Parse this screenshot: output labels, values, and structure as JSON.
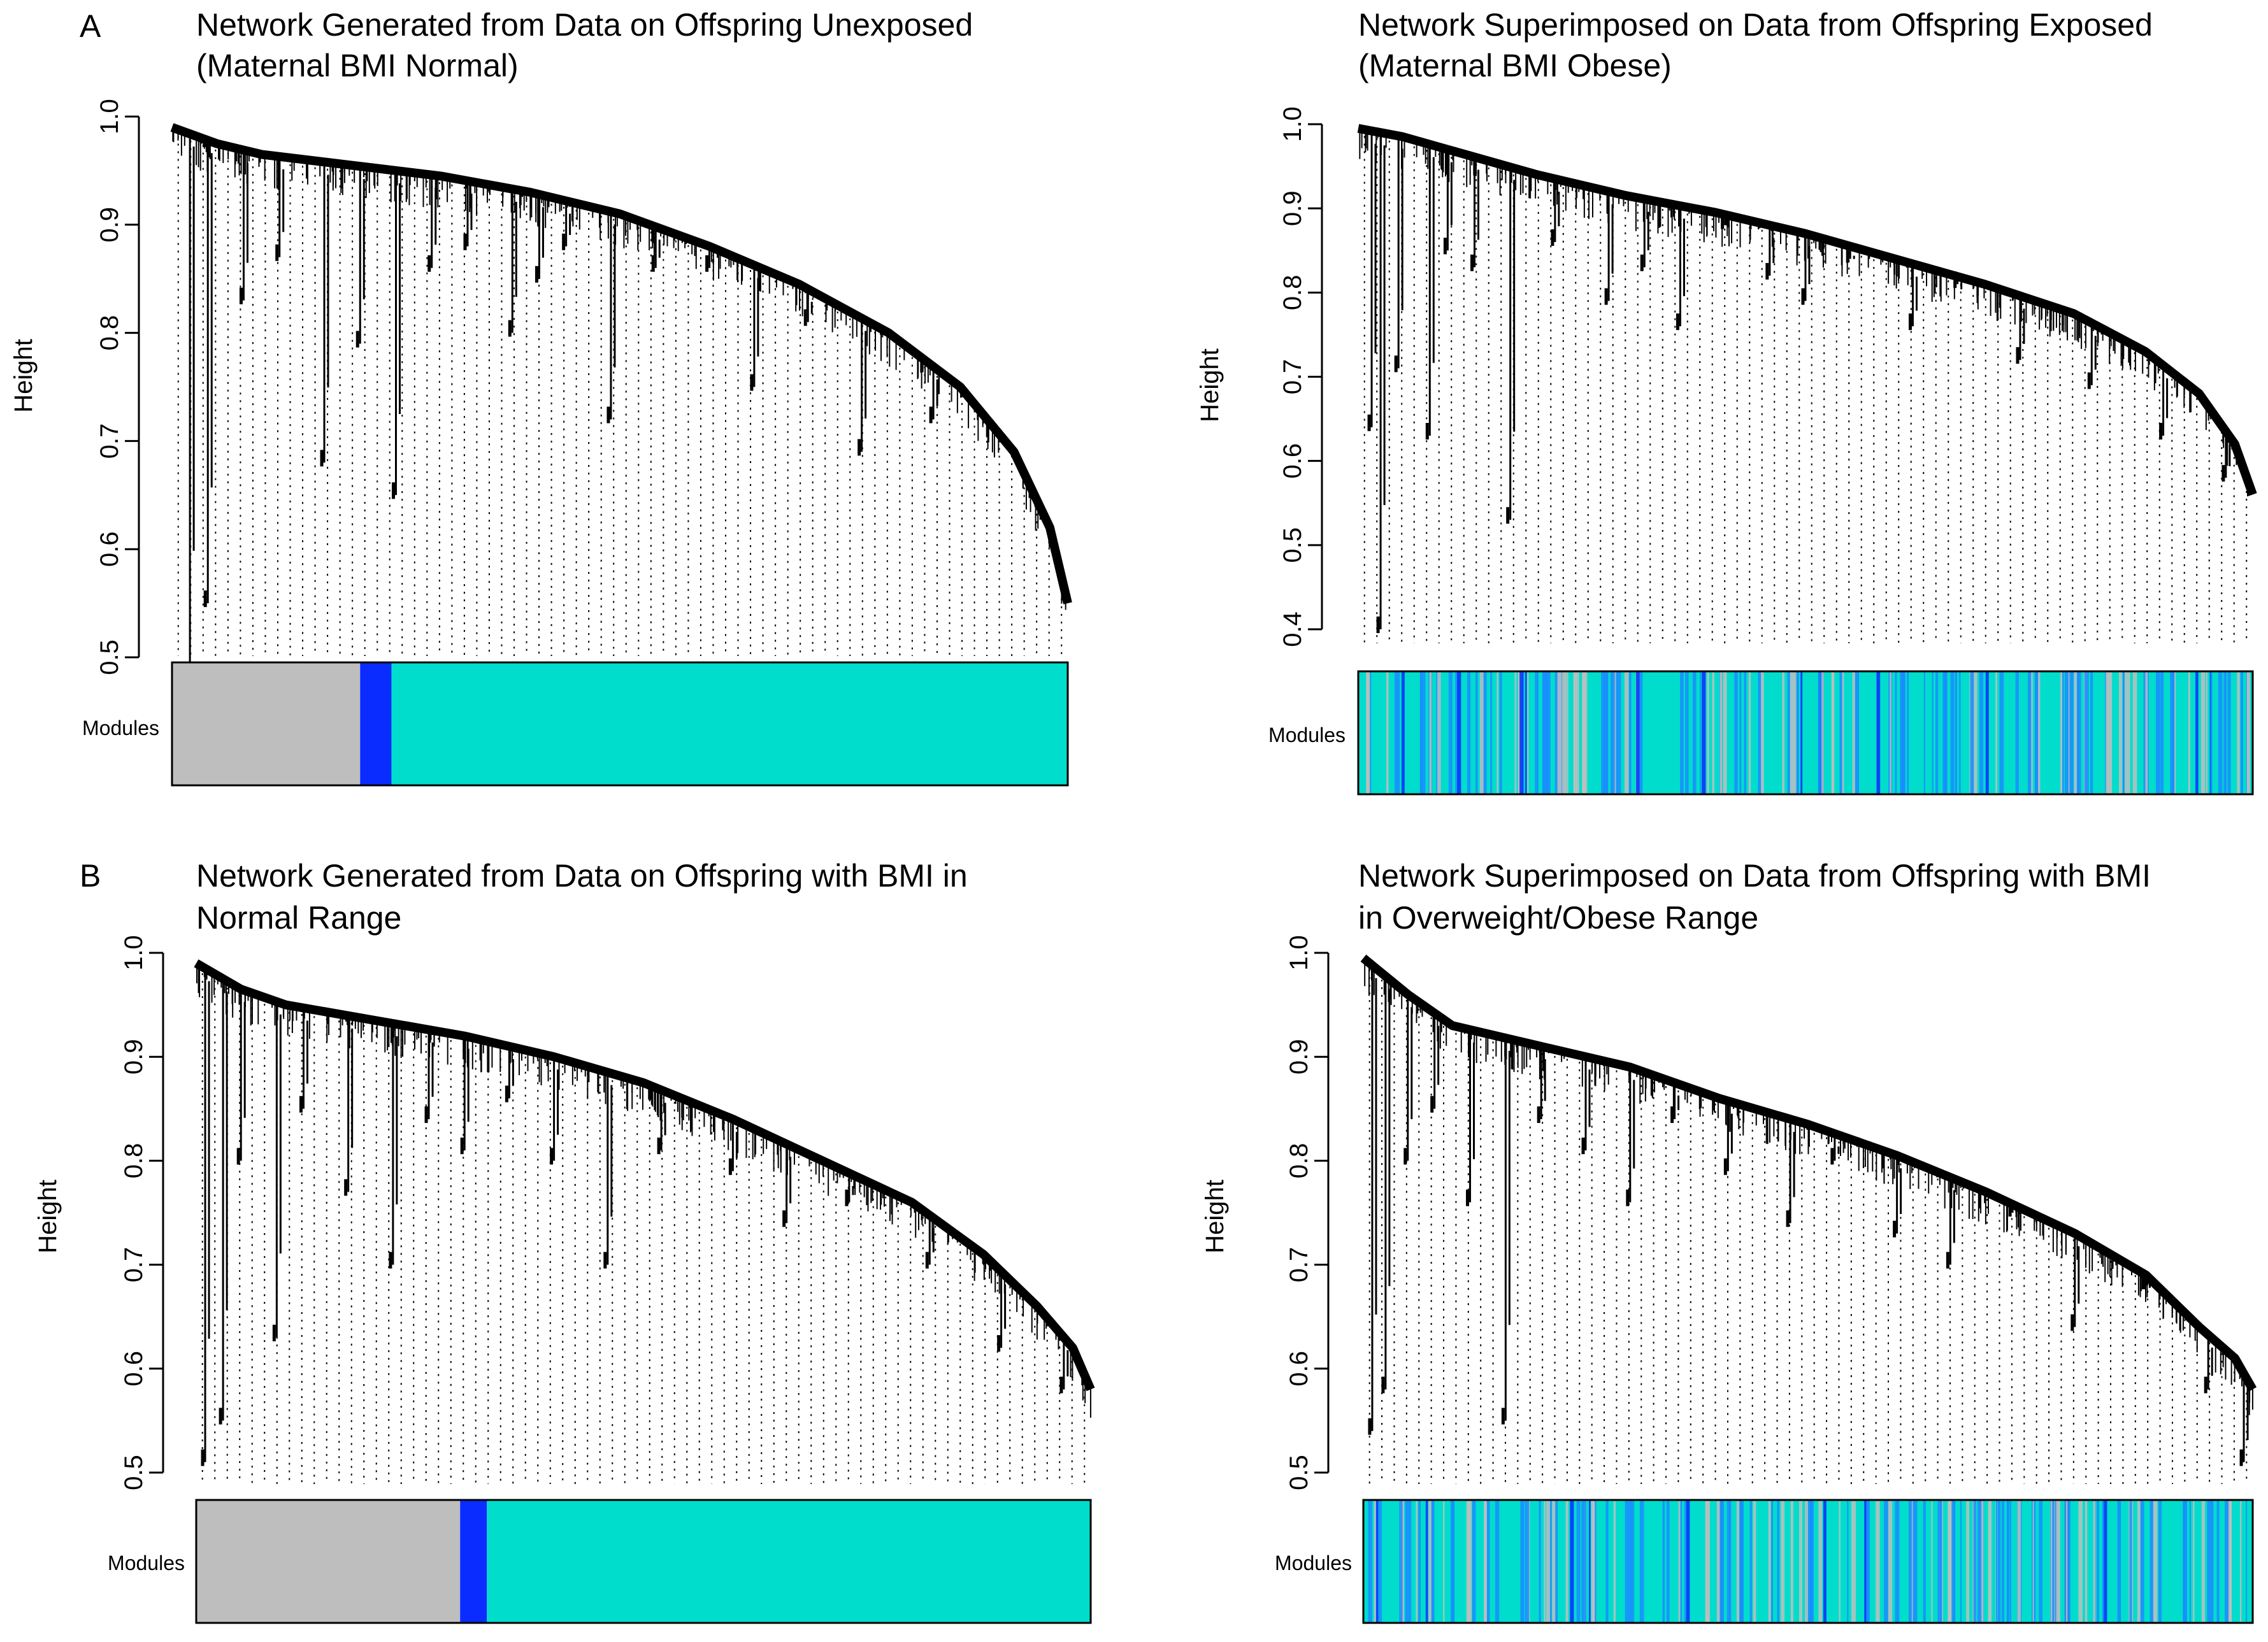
{
  "figure": {
    "panel_a_label": "A",
    "panel_b_label": "B"
  },
  "chart_data": [
    {
      "type": "dendrogram",
      "panel": "A",
      "title_lines": [
        "Network Generated from Data on Offspring Unexposed",
        "(Maternal BMI Normal)"
      ],
      "ylabel": "Height",
      "ylim": [
        0.45,
        1.0
      ],
      "yticks": [
        "0.5",
        "0.6",
        "0.7",
        "0.8",
        "0.9",
        "1.0"
      ],
      "ytick_values": [
        0.5,
        0.6,
        0.7,
        0.8,
        0.9,
        1.0
      ],
      "main_curve": [
        [
          0.0,
          0.99
        ],
        [
          0.05,
          0.975
        ],
        [
          0.1,
          0.965
        ],
        [
          0.2,
          0.955
        ],
        [
          0.3,
          0.945
        ],
        [
          0.4,
          0.93
        ],
        [
          0.5,
          0.91
        ],
        [
          0.6,
          0.88
        ],
        [
          0.7,
          0.845
        ],
        [
          0.8,
          0.8
        ],
        [
          0.88,
          0.75
        ],
        [
          0.94,
          0.69
        ],
        [
          0.98,
          0.62
        ],
        [
          1.0,
          0.55
        ]
      ],
      "branch_drops": [
        [
          0.02,
          0.47
        ],
        [
          0.04,
          0.55
        ],
        [
          0.08,
          0.83
        ],
        [
          0.12,
          0.87
        ],
        [
          0.17,
          0.68
        ],
        [
          0.21,
          0.79
        ],
        [
          0.25,
          0.65
        ],
        [
          0.29,
          0.86
        ],
        [
          0.33,
          0.88
        ],
        [
          0.38,
          0.8
        ],
        [
          0.41,
          0.85
        ],
        [
          0.44,
          0.88
        ],
        [
          0.49,
          0.72
        ],
        [
          0.54,
          0.86
        ],
        [
          0.6,
          0.86
        ],
        [
          0.65,
          0.75
        ],
        [
          0.71,
          0.81
        ],
        [
          0.77,
          0.69
        ],
        [
          0.85,
          0.72
        ]
      ],
      "modules_label": "Modules",
      "module_colors": [
        "#bebebe",
        "#0a2cff",
        "#00ddcc"
      ],
      "module_pattern": "blocks",
      "module_blocks": [
        [
          0.0,
          0.21,
          0
        ],
        [
          0.21,
          0.245,
          1
        ],
        [
          0.245,
          1.0,
          2
        ]
      ]
    },
    {
      "type": "dendrogram",
      "panel": "A",
      "title_lines": [
        "Network Superimposed on Data from Offspring Exposed",
        "(Maternal BMI Obese)"
      ],
      "ylabel": "Height",
      "ylim": [
        0.4,
        1.0
      ],
      "yticks": [
        "0.4",
        "0.5",
        "0.6",
        "0.7",
        "0.8",
        "0.9",
        "1.0"
      ],
      "ytick_values": [
        0.4,
        0.5,
        0.6,
        0.7,
        0.8,
        0.9,
        1.0
      ],
      "main_curve": [
        [
          0.0,
          0.995
        ],
        [
          0.05,
          0.985
        ],
        [
          0.1,
          0.97
        ],
        [
          0.15,
          0.955
        ],
        [
          0.2,
          0.94
        ],
        [
          0.3,
          0.915
        ],
        [
          0.4,
          0.895
        ],
        [
          0.5,
          0.87
        ],
        [
          0.6,
          0.84
        ],
        [
          0.7,
          0.81
        ],
        [
          0.8,
          0.775
        ],
        [
          0.88,
          0.73
        ],
        [
          0.94,
          0.68
        ],
        [
          0.98,
          0.62
        ],
        [
          1.0,
          0.56
        ]
      ],
      "branch_drops": [
        [
          0.015,
          0.64
        ],
        [
          0.025,
          0.4
        ],
        [
          0.045,
          0.71
        ],
        [
          0.08,
          0.63
        ],
        [
          0.1,
          0.85
        ],
        [
          0.13,
          0.83
        ],
        [
          0.17,
          0.53
        ],
        [
          0.22,
          0.86
        ],
        [
          0.28,
          0.79
        ],
        [
          0.32,
          0.83
        ],
        [
          0.36,
          0.76
        ],
        [
          0.41,
          0.88
        ],
        [
          0.46,
          0.82
        ],
        [
          0.5,
          0.79
        ],
        [
          0.55,
          0.84
        ],
        [
          0.62,
          0.76
        ],
        [
          0.67,
          0.81
        ],
        [
          0.74,
          0.72
        ],
        [
          0.82,
          0.69
        ],
        [
          0.9,
          0.63
        ],
        [
          0.97,
          0.58
        ]
      ],
      "modules_label": "Modules",
      "module_colors": [
        "#00ddcc",
        "#1a8cff",
        "#bebebe",
        "#0a2cff"
      ],
      "module_pattern": "mixed"
    },
    {
      "type": "dendrogram",
      "panel": "B",
      "title_lines": [
        "Network Generated from Data on Offspring with BMI in",
        "Normal Range"
      ],
      "ylabel": "Height",
      "ylim": [
        0.5,
        1.0
      ],
      "yticks": [
        "0.5",
        "0.6",
        "0.7",
        "0.8",
        "0.9",
        "1.0"
      ],
      "ytick_values": [
        0.5,
        0.6,
        0.7,
        0.8,
        0.9,
        1.0
      ],
      "main_curve": [
        [
          0.0,
          0.99
        ],
        [
          0.05,
          0.965
        ],
        [
          0.1,
          0.95
        ],
        [
          0.2,
          0.935
        ],
        [
          0.3,
          0.92
        ],
        [
          0.4,
          0.9
        ],
        [
          0.5,
          0.875
        ],
        [
          0.6,
          0.84
        ],
        [
          0.7,
          0.8
        ],
        [
          0.8,
          0.76
        ],
        [
          0.88,
          0.71
        ],
        [
          0.94,
          0.66
        ],
        [
          0.98,
          0.62
        ],
        [
          1.0,
          0.58
        ]
      ],
      "branch_drops": [
        [
          0.01,
          0.51
        ],
        [
          0.03,
          0.55
        ],
        [
          0.05,
          0.8
        ],
        [
          0.09,
          0.63
        ],
        [
          0.12,
          0.85
        ],
        [
          0.17,
          0.77
        ],
        [
          0.22,
          0.7
        ],
        [
          0.26,
          0.84
        ],
        [
          0.3,
          0.81
        ],
        [
          0.35,
          0.86
        ],
        [
          0.4,
          0.8
        ],
        [
          0.46,
          0.7
        ],
        [
          0.52,
          0.81
        ],
        [
          0.6,
          0.79
        ],
        [
          0.66,
          0.74
        ],
        [
          0.73,
          0.76
        ],
        [
          0.82,
          0.7
        ],
        [
          0.9,
          0.62
        ],
        [
          0.97,
          0.58
        ]
      ],
      "modules_label": "Modules",
      "module_colors": [
        "#bebebe",
        "#0a2cff",
        "#00ddcc"
      ],
      "module_pattern": "blocks",
      "module_blocks": [
        [
          0.0,
          0.295,
          0
        ],
        [
          0.295,
          0.325,
          1
        ],
        [
          0.325,
          1.0,
          2
        ]
      ]
    },
    {
      "type": "dendrogram",
      "panel": "B",
      "title_lines": [
        "Network Superimposed on Data from Offspring with BMI",
        "in Overweight/Obese Range"
      ],
      "ylabel": "Height",
      "ylim": [
        0.5,
        1.0
      ],
      "yticks": [
        "0.5",
        "0.6",
        "0.7",
        "0.8",
        "0.9",
        "1.0"
      ],
      "ytick_values": [
        0.5,
        0.6,
        0.7,
        0.8,
        0.9,
        1.0
      ],
      "main_curve": [
        [
          0.0,
          0.995
        ],
        [
          0.05,
          0.96
        ],
        [
          0.1,
          0.93
        ],
        [
          0.2,
          0.91
        ],
        [
          0.3,
          0.89
        ],
        [
          0.4,
          0.86
        ],
        [
          0.5,
          0.835
        ],
        [
          0.6,
          0.805
        ],
        [
          0.7,
          0.77
        ],
        [
          0.8,
          0.73
        ],
        [
          0.88,
          0.69
        ],
        [
          0.94,
          0.64
        ],
        [
          0.98,
          0.61
        ],
        [
          1.0,
          0.58
        ]
      ],
      "branch_drops": [
        [
          0.01,
          0.54
        ],
        [
          0.025,
          0.58
        ],
        [
          0.05,
          0.8
        ],
        [
          0.08,
          0.85
        ],
        [
          0.12,
          0.76
        ],
        [
          0.16,
          0.55
        ],
        [
          0.2,
          0.84
        ],
        [
          0.25,
          0.81
        ],
        [
          0.3,
          0.76
        ],
        [
          0.35,
          0.84
        ],
        [
          0.41,
          0.79
        ],
        [
          0.48,
          0.74
        ],
        [
          0.53,
          0.8
        ],
        [
          0.6,
          0.73
        ],
        [
          0.66,
          0.7
        ],
        [
          0.73,
          0.75
        ],
        [
          0.8,
          0.64
        ],
        [
          0.88,
          0.68
        ],
        [
          0.95,
          0.58
        ],
        [
          0.99,
          0.51
        ]
      ],
      "modules_label": "Modules",
      "module_colors": [
        "#00ddcc",
        "#1a8cff",
        "#bebebe",
        "#0a2cff"
      ],
      "module_pattern": "mixed"
    }
  ]
}
